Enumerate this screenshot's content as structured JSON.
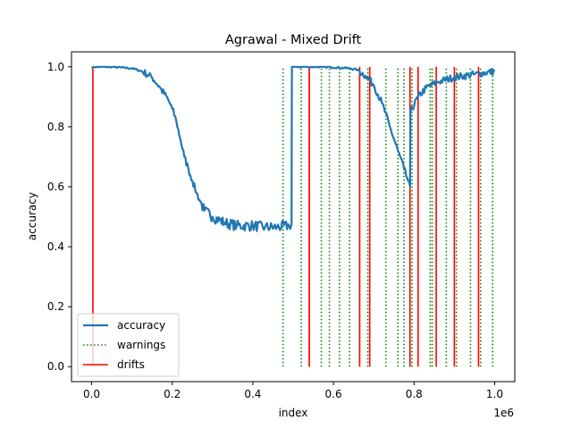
{
  "chart_data": {
    "type": "line",
    "title": "Agrawal - Mixed Drift",
    "xlabel": "index",
    "ylabel": "accuracy",
    "x_offset_label": "1e6",
    "xlim": [
      -50000,
      1050000
    ],
    "ylim": [
      -0.05,
      1.05
    ],
    "xticks": [
      0,
      200000,
      400000,
      600000,
      800000,
      1000000
    ],
    "xtick_labels": [
      "0.0",
      "0.2",
      "0.4",
      "0.6",
      "0.8",
      "1.0"
    ],
    "yticks": [
      0.0,
      0.2,
      0.4,
      0.6,
      0.8,
      1.0
    ],
    "ytick_labels": [
      "0.0",
      "0.2",
      "0.4",
      "0.6",
      "0.8",
      "1.0"
    ],
    "grid": false,
    "legend_position": "lower-left",
    "colors": {
      "accuracy": "#1f77b4",
      "warnings": "#008000",
      "drifts": "#ff0000"
    },
    "series": [
      {
        "name": "accuracy",
        "style": "solid",
        "x": [
          0,
          20000,
          50000,
          100000,
          125000,
          150000,
          170000,
          190000,
          200000,
          210000,
          220000,
          230000,
          240000,
          250000,
          260000,
          270000,
          280000,
          300000,
          330000,
          360000,
          400000,
          430000,
          460000,
          490000,
          496000,
          497000,
          520000,
          580000,
          640000,
          660000,
          680000,
          700000,
          720000,
          740000,
          760000,
          775000,
          785000,
          790000,
          791000,
          810000,
          830000,
          860000,
          900000,
          950000,
          1000000
        ],
        "y": [
          1.0,
          1.0,
          1.0,
          0.995,
          0.985,
          0.965,
          0.93,
          0.89,
          0.86,
          0.82,
          0.76,
          0.7,
          0.66,
          0.62,
          0.58,
          0.55,
          0.52,
          0.5,
          0.48,
          0.47,
          0.47,
          0.465,
          0.465,
          0.47,
          0.475,
          1.0,
          1.0,
          1.0,
          0.995,
          0.99,
          0.97,
          0.94,
          0.88,
          0.8,
          0.72,
          0.66,
          0.62,
          0.6,
          0.85,
          0.9,
          0.93,
          0.95,
          0.965,
          0.975,
          0.985
        ]
      },
      {
        "name": "warnings",
        "style": "dotted",
        "type": "vlines",
        "ymin": 0.0,
        "ymax": 1.0,
        "x": [
          475000,
          520000,
          540000,
          570000,
          590000,
          615000,
          640000,
          665000,
          685000,
          690000,
          730000,
          760000,
          775000,
          790000,
          795000,
          840000,
          845000,
          880000,
          905000,
          940000,
          965000,
          995000
        ]
      },
      {
        "name": "drifts",
        "style": "solid",
        "type": "vlines",
        "ymin": 0.0,
        "ymax": 1.0,
        "x": [
          3000,
          540000,
          665000,
          690000,
          790000,
          810000,
          855000,
          900000,
          960000
        ]
      }
    ]
  }
}
